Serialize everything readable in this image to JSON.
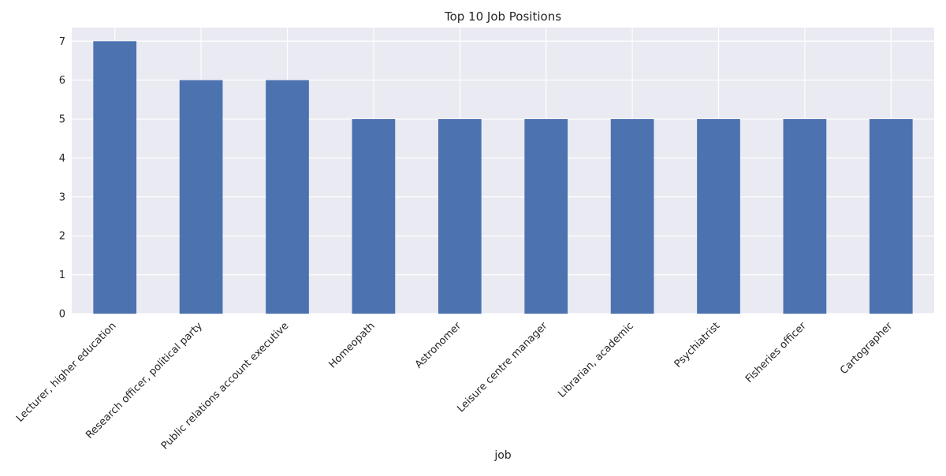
{
  "chart_data": {
    "type": "bar",
    "title": "Top 10 Job Positions",
    "xlabel": "job",
    "ylabel": "",
    "categories": [
      "Lecturer, higher education",
      "Research officer, political party",
      "Public relations account executive",
      "Homeopath",
      "Astronomer",
      "Leisure centre manager",
      "Librarian, academic",
      "Psychiatrist",
      "Fisheries officer",
      "Cartographer"
    ],
    "values": [
      7,
      6,
      6,
      5,
      5,
      5,
      5,
      5,
      5,
      5
    ],
    "ylim": [
      0,
      7.35
    ],
    "yticks": [
      0,
      1,
      2,
      3,
      4,
      5,
      6,
      7
    ],
    "grid": true,
    "bar_color": "#4c72b0",
    "background_color": "#eaeaf2",
    "grid_color": "#ffffff"
  }
}
